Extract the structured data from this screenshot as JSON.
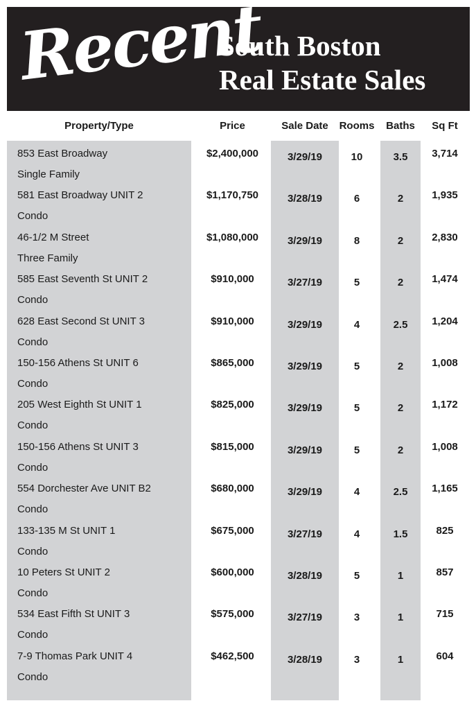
{
  "header": {
    "recent": "Recent",
    "title_line1": "South Boston",
    "title_line2": "Real Estate Sales"
  },
  "columns": {
    "property": "Property/Type",
    "price": "Price",
    "sale_date": "Sale Date",
    "rooms": "Rooms",
    "baths": "Baths",
    "sqft": "Sq Ft"
  },
  "sales": [
    {
      "address": "853 East Broadway",
      "type": "Single Family",
      "price": "$2,400,000",
      "date": "3/29/19",
      "rooms": "10",
      "baths": "3.5",
      "sqft": "3,714"
    },
    {
      "address": "581 East Broadway UNIT 2",
      "type": "Condo",
      "price": "$1,170,750",
      "date": "3/28/19",
      "rooms": "6",
      "baths": "2",
      "sqft": "1,935"
    },
    {
      "address": "46-1/2 M Street",
      "type": "Three Family",
      "price": "$1,080,000",
      "date": "3/29/19",
      "rooms": "8",
      "baths": "2",
      "sqft": "2,830"
    },
    {
      "address": "585 East Seventh St UNIT 2",
      "type": "Condo",
      "price": "$910,000",
      "date": "3/27/19",
      "rooms": "5",
      "baths": "2",
      "sqft": "1,474"
    },
    {
      "address": "628 East Second St UNIT 3",
      "type": "Condo",
      "price": "$910,000",
      "date": "3/29/19",
      "rooms": "4",
      "baths": "2.5",
      "sqft": "1,204"
    },
    {
      "address": "150-156 Athens St UNIT 6",
      "type": "Condo",
      "price": "$865,000",
      "date": "3/29/19",
      "rooms": "5",
      "baths": "2",
      "sqft": "1,008"
    },
    {
      "address": "205 West Eighth St UNIT 1",
      "type": "Condo",
      "price": "$825,000",
      "date": "3/29/19",
      "rooms": "5",
      "baths": "2",
      "sqft": "1,172"
    },
    {
      "address": "150-156 Athens St UNIT 3",
      "type": "Condo",
      "price": "$815,000",
      "date": "3/29/19",
      "rooms": "5",
      "baths": "2",
      "sqft": "1,008"
    },
    {
      "address": "554 Dorchester Ave UNIT B2",
      "type": "Condo",
      "price": "$680,000",
      "date": "3/29/19",
      "rooms": "4",
      "baths": "2.5",
      "sqft": "1,165"
    },
    {
      "address": "133-135 M St UNIT 1",
      "type": "Condo",
      "price": "$675,000",
      "date": "3/27/19",
      "rooms": "4",
      "baths": "1.5",
      "sqft": "825"
    },
    {
      "address": "10 Peters St UNIT 2",
      "type": "Condo",
      "price": "$600,000",
      "date": "3/28/19",
      "rooms": "5",
      "baths": "1",
      "sqft": "857"
    },
    {
      "address": "534 East Fifth St UNIT 3",
      "type": "Condo",
      "price": "$575,000",
      "date": "3/27/19",
      "rooms": "3",
      "baths": "1",
      "sqft": "715"
    },
    {
      "address": "7-9 Thomas Park UNIT 4",
      "type": "Condo",
      "price": "$462,500",
      "date": "3/28/19",
      "rooms": "3",
      "baths": "1",
      "sqft": "604"
    }
  ]
}
